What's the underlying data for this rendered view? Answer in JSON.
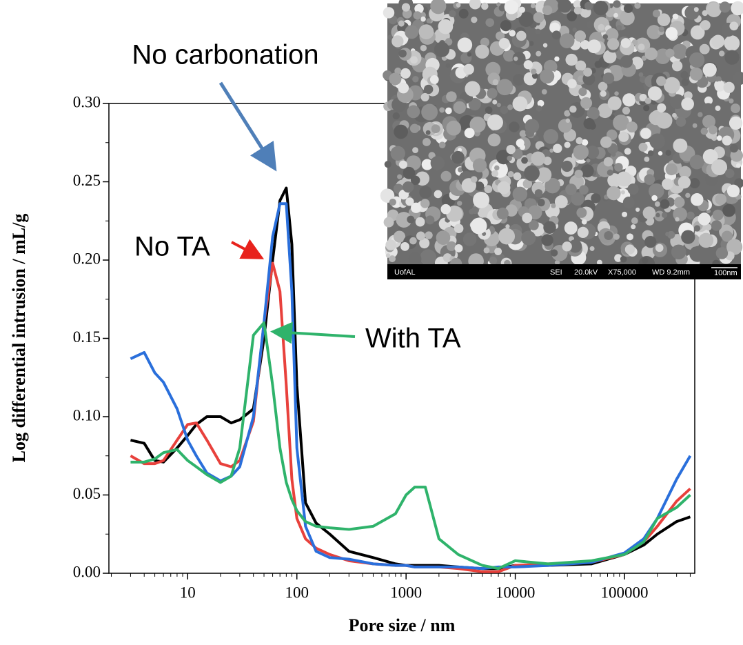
{
  "chart_data": {
    "type": "line",
    "xlabel": "Pore size / nm",
    "ylabel": "Log differential intrusion / mL/g",
    "xscale": "log",
    "xlim": [
      1.9,
      440000
    ],
    "ylim": [
      0,
      0.3
    ],
    "xticks": [
      10,
      100,
      1000,
      10000,
      100000
    ],
    "yticks": [
      {
        "value": 0,
        "label": "0.00"
      },
      {
        "value": 0.05,
        "label": "0.05"
      },
      {
        "value": 0.1,
        "label": "0.10"
      },
      {
        "value": 0.15,
        "label": "0.15"
      },
      {
        "value": 0.2,
        "label": "0.20"
      },
      {
        "value": 0.25,
        "label": "0.25"
      },
      {
        "value": 0.3,
        "label": "0.30"
      }
    ],
    "x": [
      3,
      4,
      5,
      6,
      8,
      10,
      12,
      15,
      20,
      25,
      30,
      40,
      50,
      60,
      70,
      80,
      90,
      100,
      120,
      150,
      200,
      300,
      500,
      800,
      1000,
      1200,
      1500,
      2000,
      3000,
      5000,
      7000,
      10000,
      20000,
      50000,
      100000,
      150000,
      200000,
      300000,
      400000
    ],
    "series": [
      {
        "color": "#000000",
        "values": [
          0.085,
          0.083,
          0.072,
          0.071,
          0.08,
          0.088,
          0.095,
          0.1,
          0.1,
          0.096,
          0.098,
          0.105,
          0.15,
          0.2,
          0.238,
          0.246,
          0.21,
          0.12,
          0.045,
          0.032,
          0.025,
          0.014,
          0.01,
          0.006,
          0.005,
          0.005,
          0.005,
          0.005,
          0.004,
          0.003,
          0.003,
          0.005,
          0.005,
          0.006,
          0.012,
          0.018,
          0.025,
          0.033,
          0.036
        ]
      },
      {
        "color": "#e8413c",
        "values": [
          0.075,
          0.07,
          0.07,
          0.072,
          0.085,
          0.095,
          0.096,
          0.085,
          0.07,
          0.068,
          0.072,
          0.097,
          0.16,
          0.198,
          0.18,
          0.12,
          0.06,
          0.035,
          0.022,
          0.016,
          0.012,
          0.008,
          0.006,
          0.005,
          0.005,
          0.004,
          0.004,
          0.004,
          0.003,
          0.001,
          0.001,
          0.005,
          0.006,
          0.007,
          0.012,
          0.02,
          0.03,
          0.046,
          0.054
        ]
      },
      {
        "color": "#2a6fdb",
        "values": [
          0.137,
          0.141,
          0.128,
          0.122,
          0.105,
          0.085,
          0.075,
          0.064,
          0.059,
          0.062,
          0.068,
          0.1,
          0.16,
          0.215,
          0.236,
          0.236,
          0.18,
          0.08,
          0.03,
          0.014,
          0.01,
          0.009,
          0.006,
          0.005,
          0.005,
          0.004,
          0.004,
          0.004,
          0.004,
          0.003,
          0.004,
          0.004,
          0.005,
          0.007,
          0.013,
          0.022,
          0.035,
          0.06,
          0.075
        ]
      },
      {
        "color": "#2fb36b",
        "values": [
          0.071,
          0.071,
          0.073,
          0.077,
          0.079,
          0.072,
          0.068,
          0.063,
          0.058,
          0.062,
          0.08,
          0.152,
          0.16,
          0.12,
          0.08,
          0.058,
          0.047,
          0.04,
          0.033,
          0.03,
          0.029,
          0.028,
          0.03,
          0.038,
          0.05,
          0.055,
          0.055,
          0.022,
          0.012,
          0.005,
          0.003,
          0.008,
          0.006,
          0.008,
          0.012,
          0.02,
          0.035,
          0.042,
          0.05
        ]
      }
    ],
    "annotations": [
      "No carbonation",
      "No TA",
      "With TA"
    ],
    "inset": {
      "labels": [
        "UofAL",
        "SEI",
        "20.0kV",
        "X75,000",
        "WD 9.2mm",
        "100nm"
      ]
    }
  }
}
